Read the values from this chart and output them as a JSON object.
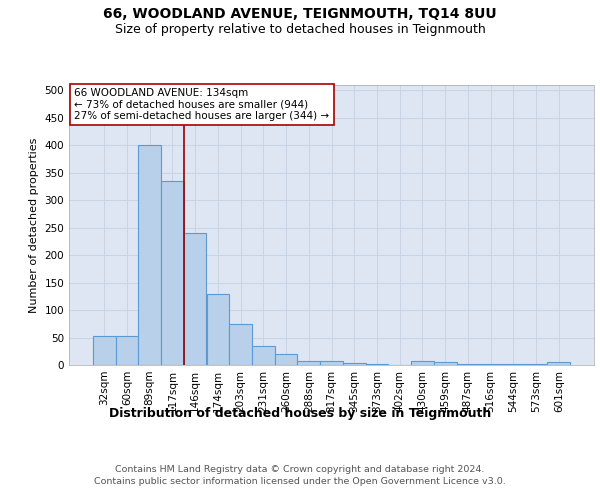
{
  "title1": "66, WOODLAND AVENUE, TEIGNMOUTH, TQ14 8UU",
  "title2": "Size of property relative to detached houses in Teignmouth",
  "xlabel": "Distribution of detached houses by size in Teignmouth",
  "ylabel": "Number of detached properties",
  "categories": [
    "32sqm",
    "60sqm",
    "89sqm",
    "117sqm",
    "146sqm",
    "174sqm",
    "203sqm",
    "231sqm",
    "260sqm",
    "288sqm",
    "317sqm",
    "345sqm",
    "373sqm",
    "402sqm",
    "430sqm",
    "459sqm",
    "487sqm",
    "516sqm",
    "544sqm",
    "573sqm",
    "601sqm"
  ],
  "values": [
    52,
    52,
    400,
    335,
    240,
    130,
    75,
    35,
    20,
    7,
    8,
    3,
    2,
    0,
    7,
    5,
    1,
    1,
    1,
    2,
    5
  ],
  "bar_color": "#b8d0ea",
  "bar_edge_color": "#5b9bd5",
  "bar_edge_width": 0.8,
  "grid_color": "#c8d4e4",
  "background_color": "#dde6f2",
  "red_line_x": 3.5,
  "annotation_text": "66 WOODLAND AVENUE: 134sqm\n← 73% of detached houses are smaller (944)\n27% of semi-detached houses are larger (344) →",
  "annotation_box_color": "#ffffff",
  "annotation_box_edge": "#aa0000",
  "red_line_color": "#990000",
  "ylim": [
    0,
    510
  ],
  "yticks": [
    0,
    50,
    100,
    150,
    200,
    250,
    300,
    350,
    400,
    450,
    500
  ],
  "footnote1": "Contains HM Land Registry data © Crown copyright and database right 2024.",
  "footnote2": "Contains public sector information licensed under the Open Government Licence v3.0.",
  "title1_fontsize": 10,
  "title2_fontsize": 9,
  "xlabel_fontsize": 9,
  "ylabel_fontsize": 8,
  "tick_fontsize": 7.5,
  "annotation_fontsize": 7.5,
  "footnote_fontsize": 6.8
}
